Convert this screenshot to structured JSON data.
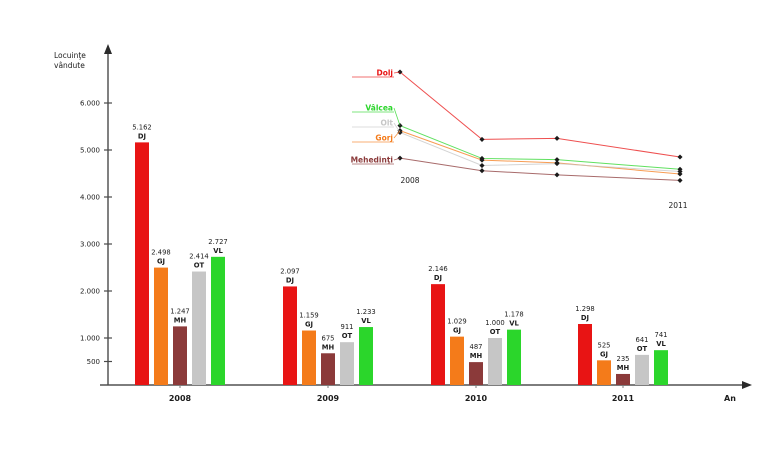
{
  "page": {
    "background": "#ffffff"
  },
  "chart_data": {
    "type": "bar",
    "title": "",
    "xlabel": "An",
    "ylabel_line1": "Locuinţe",
    "ylabel_line2": "vândute",
    "categories": [
      "2008",
      "2009",
      "2010",
      "2011"
    ],
    "ylim": [
      0,
      6500
    ],
    "yticks": [
      {
        "value": 500,
        "label": "500"
      },
      {
        "value": 1000,
        "label": "1.000"
      },
      {
        "value": 2000,
        "label": "2.000"
      },
      {
        "value": 3000,
        "label": "3.000"
      },
      {
        "value": 4000,
        "label": "4.000"
      },
      {
        "value": 5000,
        "label": "5.000"
      },
      {
        "value": 6000,
        "label": "6.000"
      }
    ],
    "series": [
      {
        "name": "Dolj",
        "code": "DJ",
        "color": "#e81414",
        "values": [
          5162,
          2097,
          2146,
          1298
        ],
        "labels": [
          "5.162",
          "2.097",
          "2.146",
          "1.298"
        ]
      },
      {
        "name": "Gorj",
        "code": "GJ",
        "color": "#f47b1a",
        "values": [
          2498,
          1159,
          1029,
          525
        ],
        "labels": [
          "2.498",
          "1.159",
          "1.029",
          "525"
        ]
      },
      {
        "name": "Mehedinţi",
        "code": "MH",
        "color": "#8b3a3a",
        "values": [
          1247,
          675,
          487,
          235
        ],
        "labels": [
          "1.247",
          "675",
          "487",
          "235"
        ]
      },
      {
        "name": "Olt",
        "code": "OT",
        "color": "#c6c6c6",
        "values": [
          2414,
          911,
          1000,
          641
        ],
        "labels": [
          "2.414",
          "911",
          "1.000",
          "641"
        ]
      },
      {
        "name": "Vâlcea",
        "code": "VL",
        "color": "#2bd62b",
        "values": [
          2727,
          1233,
          1178,
          741
        ],
        "labels": [
          "2.727",
          "1.233",
          "1.178",
          "741"
        ]
      }
    ],
    "inset": {
      "type": "line",
      "legend_order": [
        "Dolj",
        "Vâlcea",
        "Olt",
        "Gorj",
        "Mehedinţi"
      ],
      "start_label": "2008",
      "end_label": "2011",
      "grid": "off",
      "legend_position": "left"
    },
    "axis_color": "#6e6e6e",
    "text_color": "#1c1c1c"
  }
}
